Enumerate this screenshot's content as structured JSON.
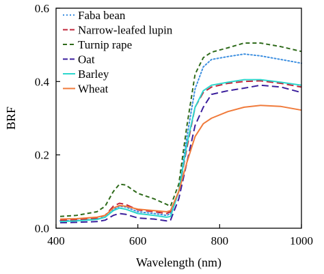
{
  "chart_data": {
    "type": "line",
    "xlabel": "Wavelength (nm)",
    "ylabel": "BRF",
    "xlim": [
      400,
      1000
    ],
    "ylim": [
      0,
      0.6
    ],
    "xticks": [
      400,
      600,
      800,
      1000
    ],
    "yticks": [
      0.0,
      0.2,
      0.4,
      0.6
    ],
    "ytick_labels": [
      "0.0",
      "0.2",
      "0.4",
      "0.6"
    ],
    "grid": false,
    "legend_position": "top-left",
    "series": [
      {
        "name": "Faba bean",
        "color": "#3d8fe0",
        "dash": "dotted",
        "points": [
          [
            410,
            0.02
          ],
          [
            450,
            0.021
          ],
          [
            500,
            0.025
          ],
          [
            520,
            0.03
          ],
          [
            540,
            0.05
          ],
          [
            555,
            0.06
          ],
          [
            570,
            0.058
          ],
          [
            600,
            0.045
          ],
          [
            640,
            0.04
          ],
          [
            670,
            0.035
          ],
          [
            680,
            0.04
          ],
          [
            700,
            0.1
          ],
          [
            720,
            0.25
          ],
          [
            740,
            0.38
          ],
          [
            760,
            0.44
          ],
          [
            780,
            0.46
          ],
          [
            820,
            0.468
          ],
          [
            860,
            0.475
          ],
          [
            900,
            0.47
          ],
          [
            950,
            0.46
          ],
          [
            1000,
            0.45
          ]
        ]
      },
      {
        "name": "Narrow-leafed lupin",
        "color": "#c0243a",
        "dash": "longdash",
        "points": [
          [
            410,
            0.022
          ],
          [
            450,
            0.023
          ],
          [
            500,
            0.028
          ],
          [
            520,
            0.035
          ],
          [
            540,
            0.06
          ],
          [
            555,
            0.068
          ],
          [
            570,
            0.065
          ],
          [
            600,
            0.05
          ],
          [
            640,
            0.045
          ],
          [
            670,
            0.04
          ],
          [
            680,
            0.045
          ],
          [
            700,
            0.1
          ],
          [
            720,
            0.22
          ],
          [
            740,
            0.33
          ],
          [
            760,
            0.37
          ],
          [
            780,
            0.385
          ],
          [
            820,
            0.395
          ],
          [
            860,
            0.4
          ],
          [
            900,
            0.402
          ],
          [
            950,
            0.395
          ],
          [
            1000,
            0.385
          ]
        ]
      },
      {
        "name": "Turnip rape",
        "color": "#2e6a1a",
        "dash": "dashed",
        "points": [
          [
            410,
            0.032
          ],
          [
            450,
            0.035
          ],
          [
            500,
            0.045
          ],
          [
            520,
            0.06
          ],
          [
            540,
            0.1
          ],
          [
            555,
            0.12
          ],
          [
            570,
            0.118
          ],
          [
            600,
            0.095
          ],
          [
            640,
            0.08
          ],
          [
            670,
            0.065
          ],
          [
            680,
            0.06
          ],
          [
            700,
            0.12
          ],
          [
            720,
            0.28
          ],
          [
            740,
            0.42
          ],
          [
            760,
            0.465
          ],
          [
            780,
            0.48
          ],
          [
            820,
            0.492
          ],
          [
            860,
            0.505
          ],
          [
            900,
            0.505
          ],
          [
            950,
            0.495
          ],
          [
            1000,
            0.482
          ]
        ]
      },
      {
        "name": "Oat",
        "color": "#3a1e9c",
        "dash": "longdash",
        "points": [
          [
            410,
            0.015
          ],
          [
            450,
            0.016
          ],
          [
            500,
            0.018
          ],
          [
            520,
            0.022
          ],
          [
            540,
            0.035
          ],
          [
            555,
            0.04
          ],
          [
            570,
            0.038
          ],
          [
            600,
            0.028
          ],
          [
            640,
            0.025
          ],
          [
            670,
            0.02
          ],
          [
            680,
            0.022
          ],
          [
            700,
            0.08
          ],
          [
            720,
            0.18
          ],
          [
            740,
            0.28
          ],
          [
            760,
            0.33
          ],
          [
            780,
            0.365
          ],
          [
            820,
            0.375
          ],
          [
            860,
            0.382
          ],
          [
            900,
            0.39
          ],
          [
            950,
            0.385
          ],
          [
            1000,
            0.37
          ]
        ]
      },
      {
        "name": "Barley",
        "color": "#2bd6cc",
        "dash": "solid",
        "points": [
          [
            410,
            0.018
          ],
          [
            450,
            0.02
          ],
          [
            500,
            0.024
          ],
          [
            520,
            0.03
          ],
          [
            540,
            0.048
          ],
          [
            555,
            0.055
          ],
          [
            570,
            0.052
          ],
          [
            600,
            0.04
          ],
          [
            640,
            0.035
          ],
          [
            670,
            0.03
          ],
          [
            680,
            0.032
          ],
          [
            700,
            0.1
          ],
          [
            720,
            0.23
          ],
          [
            740,
            0.33
          ],
          [
            760,
            0.375
          ],
          [
            780,
            0.39
          ],
          [
            820,
            0.398
          ],
          [
            860,
            0.405
          ],
          [
            900,
            0.405
          ],
          [
            950,
            0.398
          ],
          [
            1000,
            0.39
          ]
        ]
      },
      {
        "name": "Wheat",
        "color": "#f07a3a",
        "dash": "solid",
        "points": [
          [
            410,
            0.025
          ],
          [
            450,
            0.026
          ],
          [
            500,
            0.03
          ],
          [
            520,
            0.035
          ],
          [
            540,
            0.055
          ],
          [
            555,
            0.062
          ],
          [
            570,
            0.06
          ],
          [
            600,
            0.052
          ],
          [
            640,
            0.048
          ],
          [
            670,
            0.045
          ],
          [
            680,
            0.048
          ],
          [
            700,
            0.1
          ],
          [
            720,
            0.18
          ],
          [
            740,
            0.25
          ],
          [
            760,
            0.285
          ],
          [
            780,
            0.3
          ],
          [
            820,
            0.318
          ],
          [
            860,
            0.33
          ],
          [
            900,
            0.335
          ],
          [
            950,
            0.332
          ],
          [
            1000,
            0.322
          ]
        ]
      }
    ]
  }
}
